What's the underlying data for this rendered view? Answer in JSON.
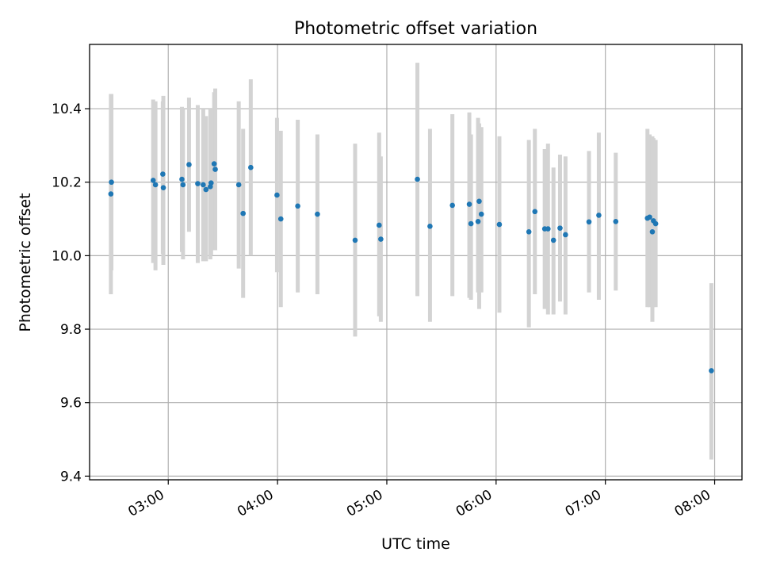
{
  "chart_data": {
    "type": "scatter",
    "title": "Photometric offset variation",
    "xlabel": "UTC time",
    "ylabel": "Photometric offset",
    "x_ticks": [
      "03:00",
      "04:00",
      "05:00",
      "06:00",
      "07:00",
      "08:00"
    ],
    "x_tick_hours": [
      3,
      4,
      5,
      6,
      7,
      8
    ],
    "y_ticks": [
      "9.4",
      "9.6",
      "9.8",
      "10.0",
      "10.2",
      "10.4"
    ],
    "y_tick_values": [
      9.4,
      9.6,
      9.8,
      10.0,
      10.2,
      10.4
    ],
    "xlim_hours": [
      2.28,
      8.25
    ],
    "ylim": [
      9.39,
      10.575
    ],
    "grid": true,
    "colors": {
      "points": "#1f77b4",
      "errorbars": "#d3d3d3",
      "grid": "#b0b0b0"
    },
    "series": [
      {
        "x_hours": [
          2.475,
          2.48,
          2.862,
          2.883,
          2.95,
          2.955,
          3.125,
          3.135,
          3.19,
          3.27,
          3.32,
          3.345,
          3.385,
          3.392,
          3.42,
          3.43,
          3.645,
          3.685,
          3.755,
          3.995,
          4.03,
          4.185,
          4.365,
          4.71,
          4.93,
          4.945,
          5.28,
          5.395,
          5.6,
          5.755,
          5.77,
          5.835,
          5.845,
          5.865,
          6.03,
          6.3,
          6.355,
          6.445,
          6.475,
          6.525,
          6.585,
          6.635,
          6.85,
          6.94,
          7.095,
          7.385,
          7.405,
          7.43,
          7.44,
          7.46
        ],
        "y": [
          10.168,
          10.2,
          10.205,
          10.193,
          10.222,
          10.185,
          10.208,
          10.193,
          10.248,
          10.196,
          10.193,
          10.18,
          10.188,
          10.198,
          10.25,
          10.235,
          10.193,
          10.115,
          10.24,
          10.165,
          10.1,
          10.135,
          10.113,
          10.042,
          10.083,
          10.045,
          10.208,
          10.08,
          10.137,
          10.14,
          10.087,
          10.093,
          10.148,
          10.113,
          10.085,
          10.065,
          10.12,
          10.073,
          10.073,
          10.042,
          10.075,
          10.057,
          10.092,
          10.11,
          10.093,
          10.102,
          10.105,
          10.065,
          10.095,
          10.087
        ],
        "err_low": [
          9.895,
          9.96,
          9.98,
          9.96,
          10.005,
          9.975,
          10.01,
          9.99,
          10.065,
          9.98,
          9.985,
          9.985,
          9.99,
          10.0,
          10.015,
          10.015,
          9.965,
          9.885,
          10.0,
          9.955,
          9.86,
          9.9,
          9.895,
          9.78,
          9.835,
          9.82,
          9.89,
          9.82,
          9.89,
          9.885,
          9.88,
          9.9,
          9.855,
          9.9,
          9.845,
          9.805,
          9.895,
          9.855,
          9.84,
          9.84,
          9.875,
          9.84,
          9.9,
          9.88,
          9.905,
          9.86,
          9.86,
          9.82,
          9.86,
          9.86
        ],
        "err_high": [
          10.44,
          10.44,
          10.425,
          10.42,
          10.42,
          10.435,
          10.405,
          10.4,
          10.43,
          10.41,
          10.4,
          10.38,
          10.4,
          10.4,
          10.445,
          10.455,
          10.42,
          10.345,
          10.48,
          10.375,
          10.34,
          10.37,
          10.33,
          10.305,
          10.335,
          10.27,
          10.525,
          10.345,
          10.385,
          10.39,
          10.33,
          10.375,
          10.36,
          10.35,
          10.325,
          10.315,
          10.345,
          10.29,
          10.305,
          10.24,
          10.275,
          10.27,
          10.285,
          10.335,
          10.28,
          10.345,
          10.33,
          10.325,
          10.32,
          10.315
        ]
      },
      {
        "x_hours": [
          7.97
        ],
        "y": [
          9.687
        ],
        "err_low": [
          9.445
        ],
        "err_high": [
          9.925
        ]
      }
    ]
  }
}
